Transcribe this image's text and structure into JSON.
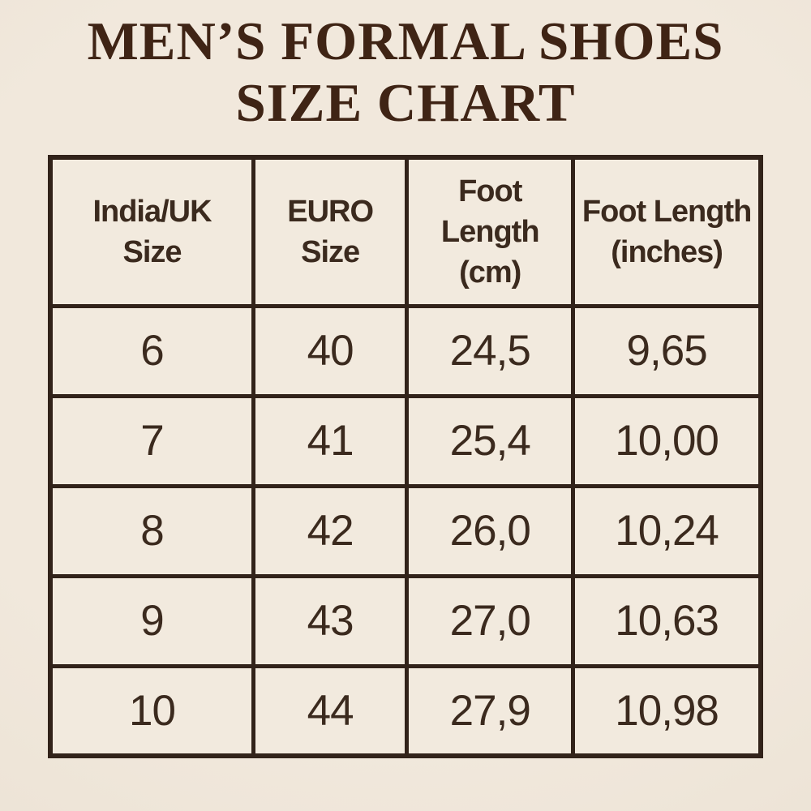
{
  "header": {
    "title_line1": "MEN’S FORMAL SHOES",
    "title_line2": "SIZE CHART"
  },
  "colors": {
    "page_background": "#EDE4D8",
    "cell_background": "#F2EADE",
    "table_border": "#32231A",
    "text": "#3B2A1E",
    "title_text": "#3F2415"
  },
  "chart_data": {
    "type": "table",
    "title": "MEN’S FORMAL SHOES SIZE CHART",
    "columns": [
      "India/UK Size",
      "EURO Size",
      "Foot Length (cm)",
      "Foot Length (inches)"
    ],
    "column_lines": [
      [
        "India/UK",
        "Size"
      ],
      [
        "EURO",
        "Size"
      ],
      [
        "Foot",
        "Length (cm)"
      ],
      [
        "Foot Length",
        "(inches)"
      ]
    ],
    "rows": [
      [
        "6",
        "40",
        "24,5",
        "9,65"
      ],
      [
        "7",
        "41",
        "25,4",
        "10,00"
      ],
      [
        "8",
        "42",
        "26,0",
        "10,24"
      ],
      [
        "9",
        "43",
        "27,0",
        "10,63"
      ],
      [
        "10",
        "44",
        "27,9",
        "10,98"
      ]
    ]
  }
}
